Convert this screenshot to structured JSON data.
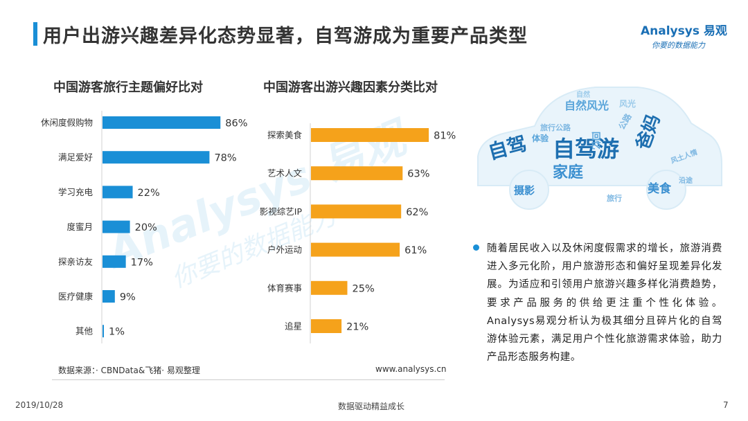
{
  "header": {
    "title": "用户出游兴趣差异化态势显著，自驾游成为重要产品类型",
    "logo_main": "Analysys 易观",
    "logo_sub": "你要的数据能力"
  },
  "colors": {
    "accent_blue": "#1a8fd6",
    "accent_orange": "#f5a21b",
    "title_bar": "#1a8fd6",
    "logo_text": "#1a6fb5"
  },
  "chart_data": [
    {
      "type": "bar",
      "orientation": "horizontal",
      "title": "中国游客旅行主题偏好比对",
      "categories": [
        "休闲度假购物",
        "满足爱好",
        "学习充电",
        "度蜜月",
        "探亲访友",
        "医疗健康",
        "其他"
      ],
      "values": [
        86,
        78,
        22,
        20,
        17,
        9,
        1
      ],
      "value_labels": [
        "86%",
        "78%",
        "22%",
        "20%",
        "17%",
        "9%",
        "1%"
      ],
      "xlim": [
        0,
        100
      ],
      "color": "#1a8fd6"
    },
    {
      "type": "bar",
      "orientation": "horizontal",
      "title": "中国游客出游兴趣因素分类比对",
      "categories": [
        "探索美食",
        "艺术人文",
        "影视综艺IP",
        "户外运动",
        "体育赛事",
        "追星"
      ],
      "values": [
        81,
        63,
        62,
        61,
        25,
        21
      ],
      "value_labels": [
        "81%",
        "63%",
        "62%",
        "61%",
        "25%",
        "21%"
      ],
      "xlim": [
        0,
        100
      ],
      "color": "#f5a21b"
    }
  ],
  "wordcloud": {
    "words": [
      "自驾游",
      "自驾",
      "家庭",
      "爸妈",
      "自然风光",
      "摄影",
      "美食",
      "旅行公路",
      "风土人情",
      "体验",
      "沿途",
      "回忆",
      "旅行",
      "自然",
      "公路",
      "风光"
    ]
  },
  "bullet": {
    "text": "随着居民收入以及休闲度假需求的增长，旅游消费进入多元化阶，用户旅游形态和偏好呈现差异化发展。为适应和引领用户旅游兴趣多样化消费趋势，要求产品服务的供给更注重个性化体验。Analysys易观分析认为极其细分且碎片化的自驾游体验元素，满足用户个性化旅游需求体验，助力产品形态服务构建。"
  },
  "footer": {
    "source": "数据来源：· CBNData&飞猪· 易观整理",
    "website": "www.analysys.cn",
    "date": "2019/10/28",
    "slogan": "数据驱动精益成长",
    "page_number": "7"
  }
}
